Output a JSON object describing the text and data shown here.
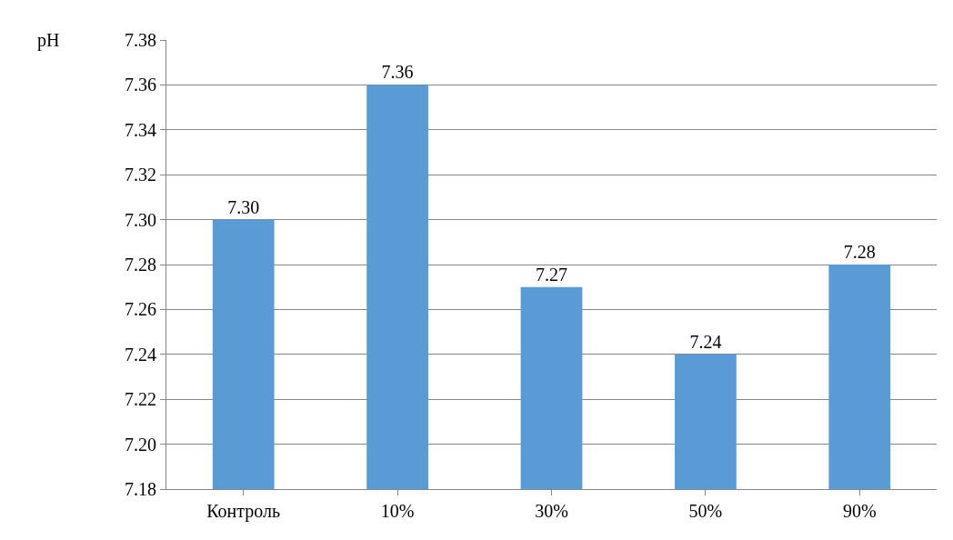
{
  "chart_data": {
    "type": "bar",
    "ylabel": "pH",
    "categories": [
      "Контроль",
      "10%",
      "30%",
      "50%",
      "90%"
    ],
    "values": [
      7.3,
      7.36,
      7.27,
      7.24,
      7.28
    ],
    "color": "#5b9bd5",
    "value_labels": [
      "7.30",
      "7.36",
      "7.27",
      "7.24",
      "7.28"
    ],
    "ylim": [
      7.18,
      7.38
    ],
    "yticks": [
      {
        "value": 7.18,
        "label": "7.18"
      },
      {
        "value": 7.2,
        "label": "7.20"
      },
      {
        "value": 7.22,
        "label": "7.22"
      },
      {
        "value": 7.24,
        "label": "7.24"
      },
      {
        "value": 7.26,
        "label": "7.26"
      },
      {
        "value": 7.28,
        "label": "7.28"
      },
      {
        "value": 7.3,
        "label": "7.30"
      },
      {
        "value": 7.32,
        "label": "7.32"
      },
      {
        "value": 7.34,
        "label": "7.34"
      },
      {
        "value": 7.36,
        "label": "7.36"
      },
      {
        "value": 7.38,
        "label": "7.38"
      }
    ],
    "grid": "y",
    "legend": false
  }
}
